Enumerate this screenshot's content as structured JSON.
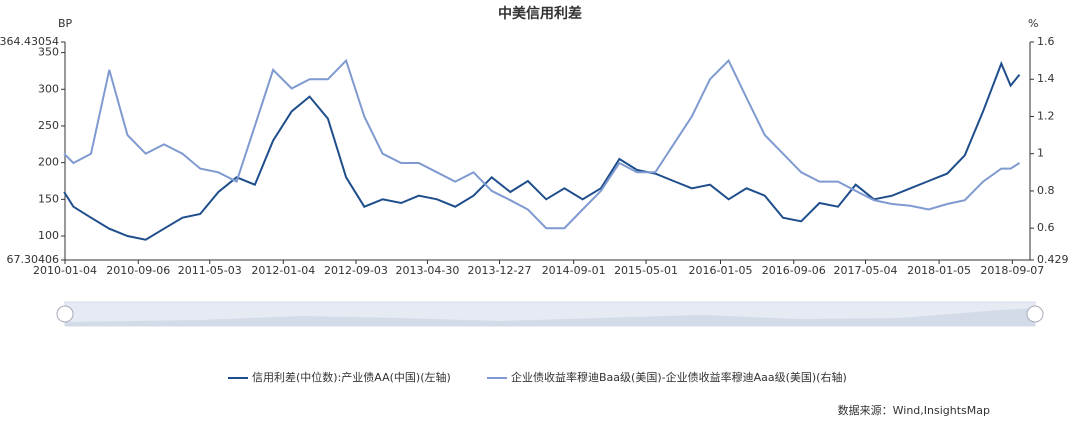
{
  "chart_data": {
    "type": "line",
    "title": "中美信用利差",
    "y_unit": "BP",
    "y2_unit": "%",
    "x": [
      "2010-01",
      "2010-02",
      "2010-04",
      "2010-06",
      "2010-08",
      "2010-10",
      "2010-12",
      "2011-02",
      "2011-04",
      "2011-06",
      "2011-08",
      "2011-10",
      "2011-12",
      "2012-02",
      "2012-04",
      "2012-06",
      "2012-08",
      "2012-10",
      "2012-12",
      "2013-02",
      "2013-04",
      "2013-06",
      "2013-08",
      "2013-10",
      "2013-12",
      "2014-02",
      "2014-04",
      "2014-06",
      "2014-08",
      "2014-10",
      "2014-12",
      "2015-02",
      "2015-04",
      "2015-06",
      "2015-08",
      "2015-10",
      "2015-12",
      "2016-02",
      "2016-04",
      "2016-06",
      "2016-08",
      "2016-10",
      "2016-12",
      "2017-02",
      "2017-04",
      "2017-06",
      "2017-08",
      "2017-10",
      "2017-12",
      "2018-02",
      "2018-04",
      "2018-06",
      "2018-08",
      "2018-09",
      "2018-10"
    ],
    "series": [
      {
        "name": "信用利差(中位数):产业债AA(中国)(左轴)",
        "color": "#1f4e8c",
        "axis": "y",
        "values": [
          160,
          140,
          125,
          110,
          100,
          95,
          110,
          125,
          130,
          160,
          180,
          170,
          230,
          270,
          290,
          260,
          180,
          140,
          150,
          145,
          155,
          150,
          140,
          155,
          180,
          160,
          175,
          150,
          165,
          150,
          165,
          205,
          190,
          185,
          175,
          165,
          170,
          150,
          165,
          155,
          125,
          120,
          145,
          140,
          170,
          150,
          155,
          165,
          175,
          185,
          210,
          270,
          335,
          305,
          320
        ]
      },
      {
        "name": "企业债收益率穆迪Baa级(美国)-企业债收益率穆迪Aaa级(美国)(右轴)",
        "color": "#7f9ad0",
        "axis": "y2",
        "values": [
          1.0,
          0.95,
          1.0,
          1.45,
          1.1,
          1.0,
          1.05,
          1.0,
          0.92,
          0.9,
          0.85,
          1.15,
          1.45,
          1.35,
          1.4,
          1.4,
          1.5,
          1.2,
          1.0,
          0.95,
          0.95,
          0.9,
          0.85,
          0.9,
          0.8,
          0.75,
          0.7,
          0.6,
          0.6,
          0.7,
          0.8,
          0.95,
          0.9,
          0.9,
          1.05,
          1.2,
          1.4,
          1.5,
          1.3,
          1.1,
          1.0,
          0.9,
          0.85,
          0.85,
          0.8,
          0.75,
          0.73,
          0.72,
          0.7,
          0.73,
          0.75,
          0.85,
          0.92,
          0.92,
          0.95
        ]
      }
    ],
    "xlim": [
      "2010-01-04",
      "2018-11-05"
    ],
    "xticks": [
      "2010-01-04",
      "2010-09-06",
      "2011-05-03",
      "2012-01-04",
      "2012-09-03",
      "2013-04-30",
      "2013-12-27",
      "2014-09-01",
      "2015-05-01",
      "2016-01-05",
      "2016-09-06",
      "2017-05-04",
      "2018-01-05",
      "2018-09-07"
    ],
    "ylim": [
      67.30406,
      364.43054
    ],
    "yticks": [
      67.30406,
      100,
      150,
      200,
      250,
      300,
      350,
      364.43054
    ],
    "y2lim": [
      0.429,
      1.6
    ],
    "y2ticks": [
      0.429,
      0.6,
      0.8,
      1,
      1.2,
      1.4,
      1.6
    ],
    "source": "数据来源：Wind,InsightsMap"
  }
}
